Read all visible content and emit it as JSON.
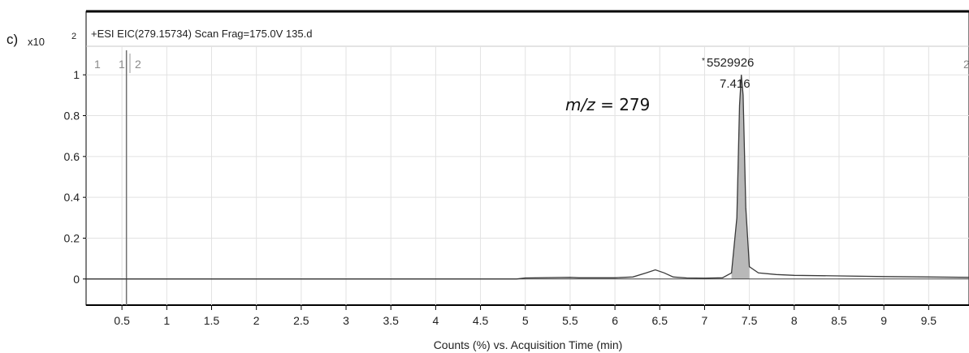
{
  "panel_label": "c)",
  "multiplier": {
    "base": "x10",
    "exponent": "2"
  },
  "chart_data": {
    "type": "line",
    "title": "+ESI EIC(279.15734) Scan Frag=175.0V 135.d",
    "xlabel": "Counts (%) vs. Acquisition Time (min)",
    "ylabel": "",
    "xlim": [
      0.1,
      9.95
    ],
    "ylim": [
      -0.12,
      1.12
    ],
    "x_ticks": [
      "0.5",
      "1",
      "1.5",
      "2",
      "2.5",
      "3",
      "3.5",
      "4",
      "4.5",
      "5",
      "5.5",
      "6",
      "6.5",
      "7",
      "7.5",
      "8",
      "8.5",
      "9",
      "9.5"
    ],
    "x_tick_values": [
      0.5,
      1,
      1.5,
      2,
      2.5,
      3,
      3.5,
      4,
      4.5,
      5,
      5.5,
      6,
      6.5,
      7,
      7.5,
      8,
      8.5,
      9,
      9.5
    ],
    "y_ticks": [
      "0",
      "0.2",
      "0.4",
      "0.6",
      "0.8",
      "1"
    ],
    "y_tick_values": [
      0,
      0.2,
      0.4,
      0.6,
      0.8,
      1
    ],
    "grid": true,
    "marker_line_x": 0.55,
    "segment_labels": [
      "1",
      "1",
      "2",
      "2"
    ],
    "peak_annotation": {
      "count": "5529926",
      "time": "7.416",
      "x": 7.416,
      "y": 1.0
    },
    "mz_label": {
      "prefix": "m/z",
      "value": " = 279"
    },
    "series": [
      {
        "x": [
          0.1,
          4.9,
          5.0,
          5.5,
          5.6,
          6.0,
          6.2,
          6.35,
          6.45,
          6.55,
          6.65,
          6.8,
          7.0,
          7.2,
          7.3,
          7.36,
          7.39,
          7.41,
          7.43,
          7.46,
          7.5,
          7.6,
          7.8,
          8.0,
          8.5,
          9.0,
          9.5,
          9.95
        ],
        "y": [
          0.0,
          0.0,
          0.005,
          0.008,
          0.006,
          0.006,
          0.01,
          0.03,
          0.045,
          0.03,
          0.01,
          0.005,
          0.004,
          0.006,
          0.03,
          0.3,
          0.85,
          1.0,
          0.9,
          0.35,
          0.06,
          0.03,
          0.022,
          0.018,
          0.015,
          0.012,
          0.01,
          0.008
        ]
      }
    ]
  }
}
